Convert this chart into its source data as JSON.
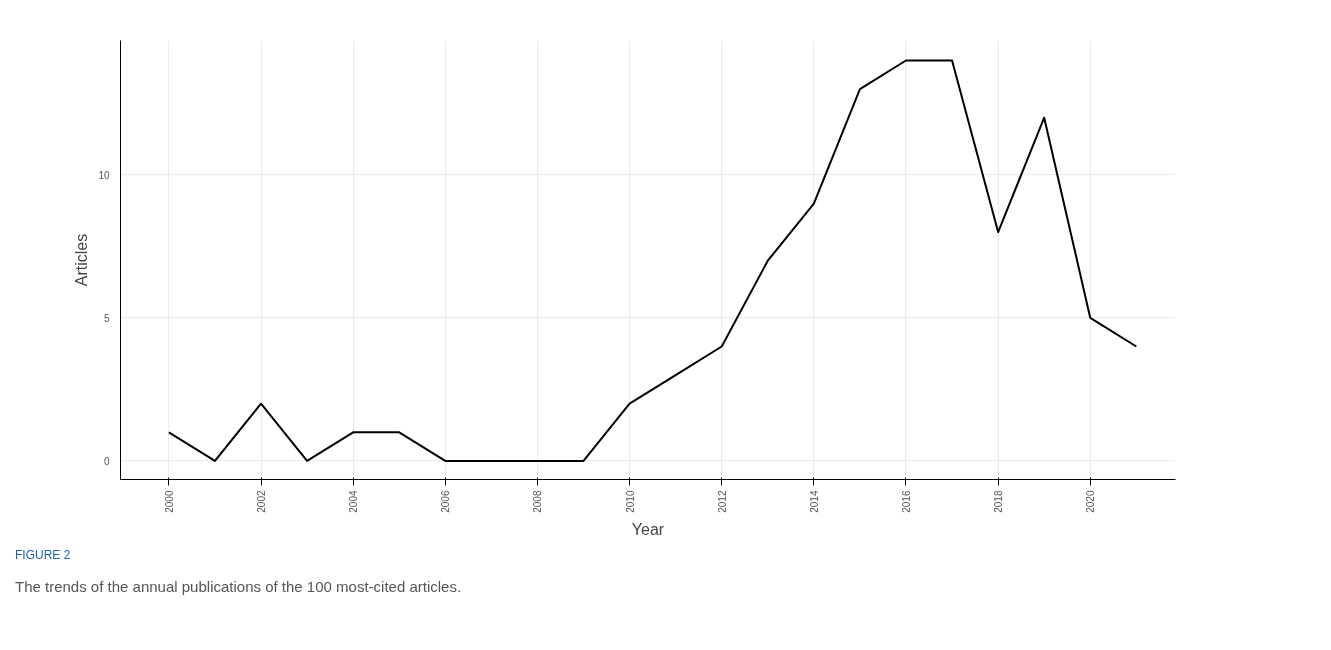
{
  "chart_data": {
    "type": "line",
    "xlabel": "Year",
    "ylabel": "Articles",
    "x": [
      2000,
      2001,
      2002,
      2003,
      2004,
      2005,
      2006,
      2007,
      2008,
      2009,
      2010,
      2011,
      2012,
      2013,
      2014,
      2015,
      2016,
      2017,
      2018,
      2019,
      2020,
      2021
    ],
    "series": [
      {
        "color": "#000000",
        "values": [
          1,
          0,
          2,
          0,
          1,
          1,
          0,
          0,
          0,
          0,
          2,
          3,
          4,
          7,
          9,
          13,
          14,
          14,
          8,
          12,
          5,
          4
        ]
      }
    ],
    "xlim": [
      1998.95,
      2021.85
    ],
    "ylim": [
      -0.65,
      14.7
    ],
    "xticks": [
      2000,
      2002,
      2004,
      2006,
      2008,
      2010,
      2012,
      2014,
      2016,
      2018,
      2020
    ],
    "yticks": [
      0,
      5,
      10
    ],
    "grid": true,
    "marker": "none",
    "line_style": "solid",
    "annotations": [
      "FIGURE 2",
      "The trends of the annual publications of the 100 most-cited articles."
    ]
  }
}
